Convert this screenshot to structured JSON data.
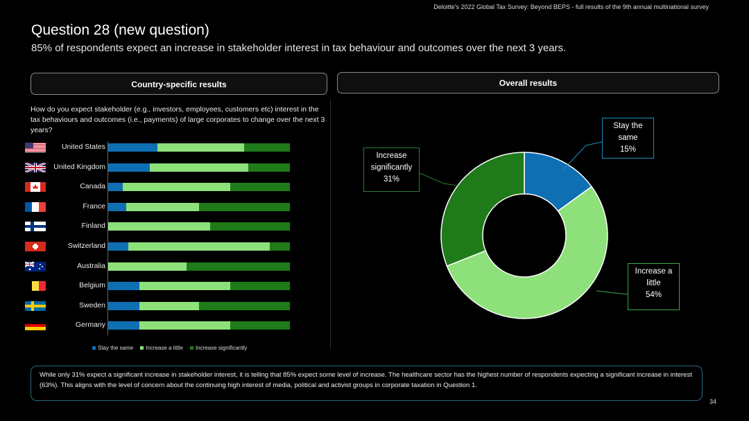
{
  "header": {
    "note": "Deloitte's 2022 Global Tax Survey: Beyond BEPS  - full results of the 9th annual multinational survey"
  },
  "title": "Question 28 (new question)",
  "subtitle": "85% of respondents expect an increase in stakeholder interest in tax behaviour and outcomes over the next 3 years.",
  "panels": {
    "country_label": "Country-specific results",
    "overall_label": "Overall results"
  },
  "question": "How do you expect stakeholder (e.g., investors, employees, customers etc) interest in the tax behaviours and outcomes (i.e., payments) of large corporates to change over the next 3 years?",
  "colors": {
    "stay": "#0f6fb3",
    "little": "#8ee07a",
    "significant": "#1f7a1a"
  },
  "chart_data": [
    {
      "type": "bar",
      "orientation": "horizontal",
      "stacked": "100%",
      "categories": [
        "United States",
        "United Kingdom",
        "Canada",
        "France",
        "Finland",
        "Switzerland",
        "Australia",
        "Belgium",
        "Sweden",
        "Germany"
      ],
      "series": [
        {
          "name": "Stay the same",
          "values": [
            27,
            23,
            8,
            10,
            0,
            11,
            0,
            17,
            17,
            17
          ]
        },
        {
          "name": "Increase a little",
          "values": [
            48,
            54,
            59,
            40,
            56,
            78,
            43,
            50,
            33,
            50
          ]
        },
        {
          "name": "Increase significantly",
          "values": [
            25,
            23,
            33,
            50,
            44,
            11,
            57,
            33,
            50,
            33
          ]
        }
      ],
      "legend": [
        "Stay the same",
        "Increase a little",
        "Increase significantly"
      ]
    },
    {
      "type": "pie",
      "donut": true,
      "slices": [
        {
          "label": "Stay the same",
          "value": 15,
          "display": "15%"
        },
        {
          "label": "Increase a little",
          "value": 54,
          "display": "54%"
        },
        {
          "label": "Increase significantly",
          "value": 31,
          "display": "31%"
        }
      ]
    }
  ],
  "callouts": {
    "increase_sig": {
      "line1": "Increase",
      "line2": "significantly",
      "pct": "31%"
    },
    "stay": {
      "line1": "Stay the",
      "line2": "same",
      "pct": "15%"
    },
    "little": {
      "line1": "Increase a",
      "line2": "little",
      "pct": "54%"
    }
  },
  "flags": [
    "us-flag",
    "uk-flag",
    "canada-flag",
    "france-flag",
    "finland-flag",
    "switzerland-flag",
    "australia-flag",
    "belgium-flag",
    "sweden-flag",
    "germany-flag"
  ],
  "bottom_text": "While only 31% expect a significant increase in stakeholder interest, it is telling that 85% expect some level of increase. The healthcare sector has the highest number of respondents expecting a significant increase in interest (63%). This aligns with the level of concern about the continuing high interest of media, political and activist groups in corporate taxation in Question 1.",
  "page_number": "34"
}
